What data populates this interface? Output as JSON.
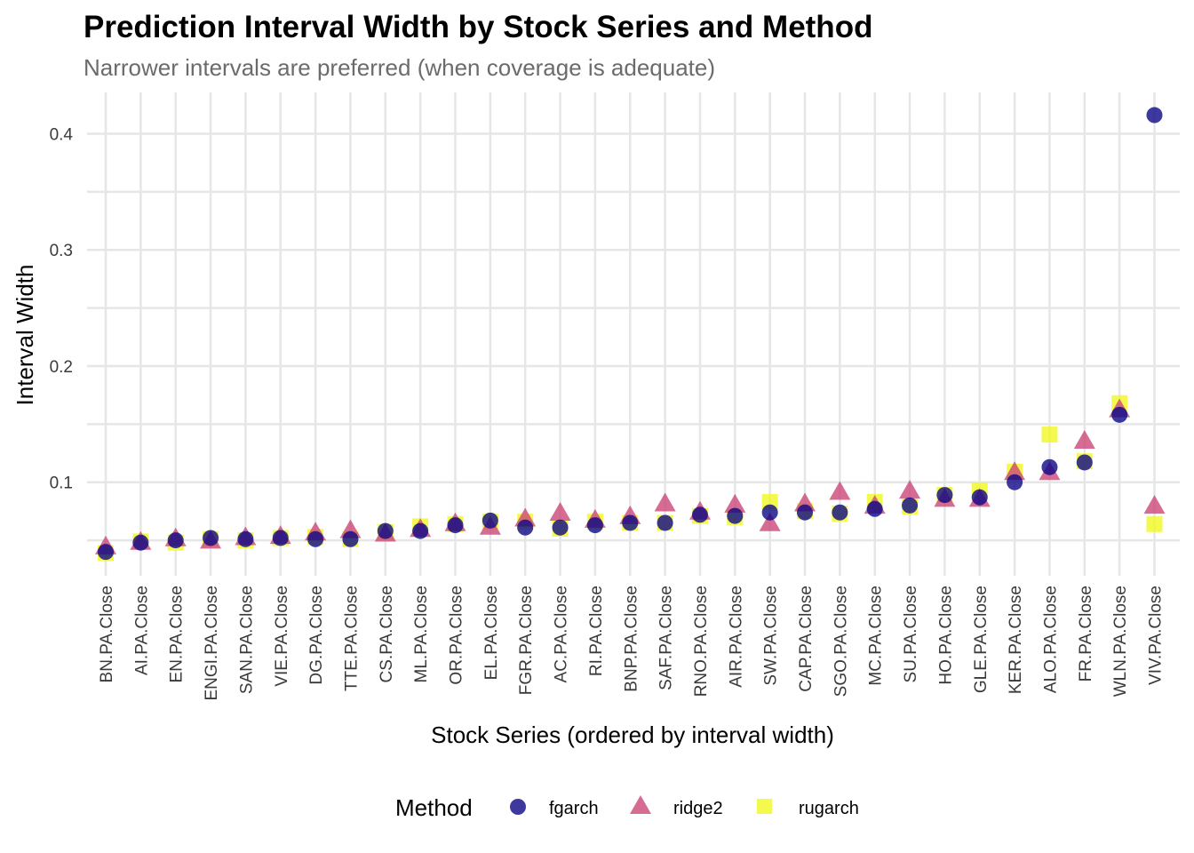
{
  "chart_data": {
    "type": "scatter",
    "title": "Prediction Interval Width by Stock Series and Method",
    "subtitle": "Narrower intervals are preferred (when coverage is adequate)",
    "xlabel": "Stock Series (ordered by interval width)",
    "ylabel": "Interval Width",
    "ylim": [
      0.021,
      0.432
    ],
    "yticks": [
      "0.1",
      "0.2",
      "0.3",
      "0.4"
    ],
    "grid": true,
    "legend_position": "bottom",
    "legend_title": "Method",
    "categories": [
      "BN.PA.Close",
      "AI.PA.Close",
      "EN.PA.Close",
      "ENGI.PA.Close",
      "SAN.PA.Close",
      "VIE.PA.Close",
      "DG.PA.Close",
      "TTE.PA.Close",
      "CS.PA.Close",
      "ML.PA.Close",
      "OR.PA.Close",
      "EL.PA.Close",
      "FGR.PA.Close",
      "AC.PA.Close",
      "RI.PA.Close",
      "BNP.PA.Close",
      "SAF.PA.Close",
      "RNO.PA.Close",
      "AIR.PA.Close",
      "SW.PA.Close",
      "CAP.PA.Close",
      "SGO.PA.Close",
      "MC.PA.Close",
      "SU.PA.Close",
      "HO.PA.Close",
      "GLE.PA.Close",
      "KER.PA.Close",
      "ALO.PA.Close",
      "FR.PA.Close",
      "WLN.PA.Close",
      "VIV.PA.Close"
    ],
    "series": [
      {
        "name": "rugarch",
        "shape": "square",
        "color": "#f0f921",
        "values": [
          0.039,
          0.049,
          0.048,
          0.051,
          0.05,
          0.052,
          0.053,
          0.051,
          0.057,
          0.062,
          0.064,
          0.066,
          0.066,
          0.06,
          0.066,
          0.065,
          0.065,
          0.071,
          0.07,
          0.083,
          0.075,
          0.073,
          0.083,
          0.079,
          0.089,
          0.093,
          0.109,
          0.141,
          0.118,
          0.168,
          0.064
        ]
      },
      {
        "name": "ridge2",
        "shape": "triangle",
        "color": "#cc4778",
        "values": [
          0.044,
          0.048,
          0.051,
          0.049,
          0.052,
          0.053,
          0.056,
          0.058,
          0.055,
          0.059,
          0.064,
          0.061,
          0.068,
          0.073,
          0.067,
          0.07,
          0.081,
          0.074,
          0.08,
          0.064,
          0.081,
          0.091,
          0.079,
          0.092,
          0.085,
          0.085,
          0.108,
          0.108,
          0.135,
          0.162,
          0.079
        ]
      },
      {
        "name": "fgarch",
        "shape": "circle",
        "color": "#0d0887",
        "values": [
          0.04,
          0.048,
          0.05,
          0.052,
          0.051,
          0.052,
          0.051,
          0.051,
          0.058,
          0.058,
          0.063,
          0.067,
          0.061,
          0.061,
          0.063,
          0.065,
          0.065,
          0.072,
          0.071,
          0.074,
          0.074,
          0.074,
          0.077,
          0.08,
          0.089,
          0.087,
          0.1,
          0.113,
          0.117,
          0.158,
          0.416
        ]
      }
    ]
  }
}
